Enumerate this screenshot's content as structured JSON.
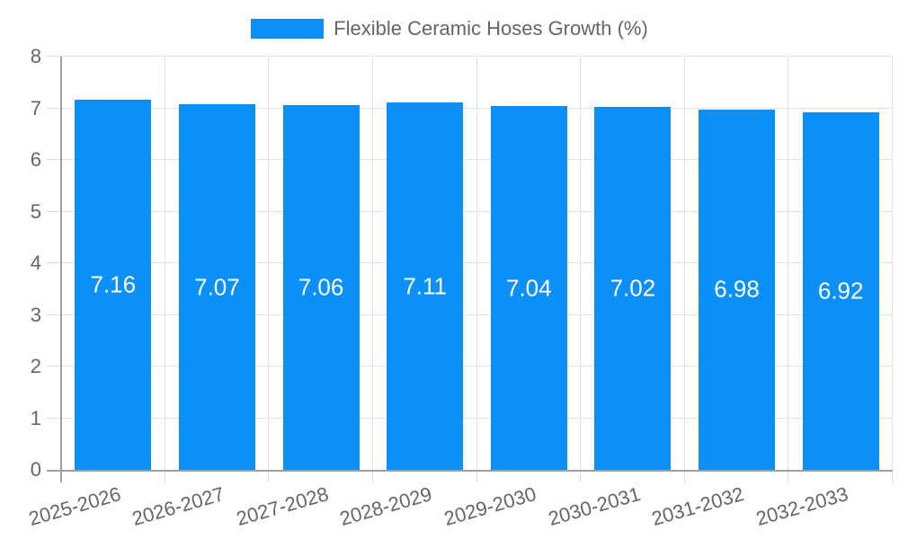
{
  "chart_data": {
    "type": "bar",
    "title": "Flexible Ceramic Hoses Growth (%)",
    "categories": [
      "2025-2026",
      "2026-2027",
      "2027-2028",
      "2028-2029",
      "2029-2030",
      "2030-2031",
      "2031-2032",
      "2032-2033"
    ],
    "values": [
      7.16,
      7.07,
      7.06,
      7.11,
      7.04,
      7.02,
      6.98,
      6.92
    ],
    "value_labels": [
      "7.16",
      "7.07",
      "7.06",
      "7.11",
      "7.04",
      "7.02",
      "6.98",
      "6.92"
    ],
    "xlabel": "",
    "ylabel": "",
    "ylim": [
      0,
      8
    ],
    "yticks": [
      0,
      1,
      2,
      3,
      4,
      5,
      6,
      7,
      8
    ],
    "grid": true,
    "legend_position": "top-center",
    "x_tick_rotation_deg": -16
  },
  "legend": {
    "label": "Flexible Ceramic Hoses Growth (%)"
  },
  "colors": {
    "bar": "#0a90f8",
    "grid": "#e3e3e3",
    "tick": "#dcdcdc",
    "axis": "#a0a0a0",
    "text": "#666666",
    "value_text": "#ffffff",
    "background": "#ffffff"
  }
}
